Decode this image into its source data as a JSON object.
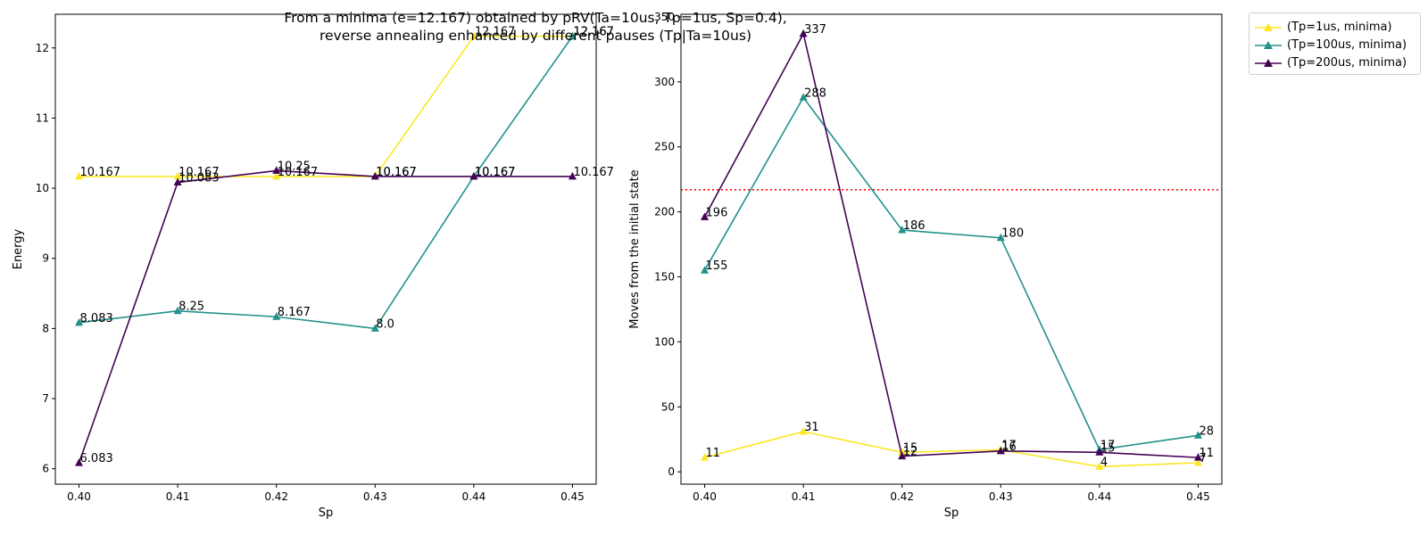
{
  "figure": {
    "suptitle_line1": "From a minima (e=12.167) obtained by pRV(Ta=10us, Tp=1us, Sp=0.4),",
    "suptitle_line2": "reverse annealing enhanced by different pauses (Tp|Ta=10us)"
  },
  "legend": {
    "placement": "outside-upper-right",
    "entries": [
      {
        "label": "(Tp=1us, minima)",
        "color": "#fde725"
      },
      {
        "label": "(Tp=100us, minima)",
        "color": "#21918c"
      },
      {
        "label": "(Tp=200us, minima)",
        "color": "#440154"
      }
    ]
  },
  "chart_data": [
    {
      "type": "line",
      "xlabel": "Sp",
      "ylabel": "Energy",
      "x": [
        0.4,
        0.41,
        0.42,
        0.43,
        0.44,
        0.45
      ],
      "xticklabels": [
        "0.40",
        "0.41",
        "0.42",
        "0.43",
        "0.44",
        "0.45"
      ],
      "xlim": [
        0.3976,
        0.4524
      ],
      "ylim": [
        5.78,
        12.48
      ],
      "yticks": [
        6,
        7,
        8,
        9,
        10,
        11,
        12
      ],
      "grid": false,
      "series": [
        {
          "name": "(Tp=1us, minima)",
          "color": "#fde725",
          "values": [
            10.167,
            10.167,
            10.167,
            10.167,
            12.167,
            12.167
          ],
          "labels": [
            "10.167",
            "10.167",
            "10.167",
            "10.167",
            "12.167",
            "12.167"
          ]
        },
        {
          "name": "(Tp=100us, minima)",
          "color": "#21918c",
          "values": [
            8.083,
            8.25,
            8.167,
            8.0,
            10.167,
            12.167
          ],
          "labels": [
            "8.083",
            "8.25",
            "8.167",
            "8.0",
            "10.167",
            "12.167"
          ]
        },
        {
          "name": "(Tp=200us, minima)",
          "color": "#440154",
          "values": [
            6.083,
            10.083,
            10.25,
            10.167,
            10.167,
            10.167
          ],
          "labels": [
            "6.083",
            "10.083",
            "10.25",
            "10.167",
            "10.167",
            "10.167"
          ]
        }
      ]
    },
    {
      "type": "line",
      "xlabel": "Sp",
      "ylabel": "Moves from the initial state",
      "x": [
        0.4,
        0.41,
        0.42,
        0.43,
        0.44,
        0.45
      ],
      "xticklabels": [
        "0.40",
        "0.41",
        "0.42",
        "0.43",
        "0.44",
        "0.45"
      ],
      "xlim": [
        0.3976,
        0.4524
      ],
      "ylim": [
        -9.5,
        352
      ],
      "yticks": [
        0,
        50,
        100,
        150,
        200,
        250,
        300,
        350
      ],
      "grid": false,
      "hline": {
        "y": 217,
        "color": "#ff0000",
        "style": "dotted"
      },
      "series": [
        {
          "name": "(Tp=1us, minima)",
          "color": "#fde725",
          "values": [
            11,
            31,
            15,
            17,
            4,
            7
          ],
          "labels": [
            "11",
            "31",
            "15",
            "17",
            "4",
            "7"
          ]
        },
        {
          "name": "(Tp=100us, minima)",
          "color": "#21918c",
          "values": [
            155,
            288,
            186,
            180,
            17,
            28
          ],
          "labels": [
            "155",
            "288",
            "186",
            "180",
            "17",
            "28"
          ]
        },
        {
          "name": "(Tp=200us, minima)",
          "color": "#440154",
          "values": [
            196,
            337,
            12,
            16,
            15,
            11
          ],
          "labels": [
            "196",
            "337",
            "12",
            "16",
            "15",
            "11"
          ]
        }
      ]
    }
  ]
}
